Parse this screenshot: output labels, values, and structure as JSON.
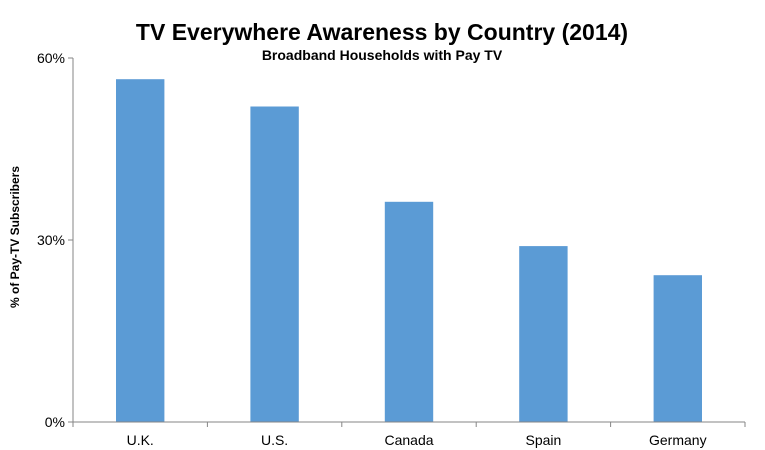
{
  "chart_data": {
    "type": "bar",
    "title": "TV Everywhere Awareness by Country (2014)",
    "subtitle": "Broadband Households with Pay TV",
    "xlabel": "",
    "ylabel": "% of Pay-TV Subscribers",
    "categories": [
      "U.K.",
      "U.S.",
      "Canada",
      "Spain",
      "Germany"
    ],
    "values": [
      56.5,
      52,
      36.3,
      29,
      24.2
    ],
    "ylim": [
      0,
      60
    ],
    "yticks": [
      0,
      30,
      60
    ],
    "ytick_labels": [
      "0%",
      "30%",
      "60%"
    ],
    "grid": false,
    "legend": "none",
    "bar_color": "#5B9BD5"
  }
}
